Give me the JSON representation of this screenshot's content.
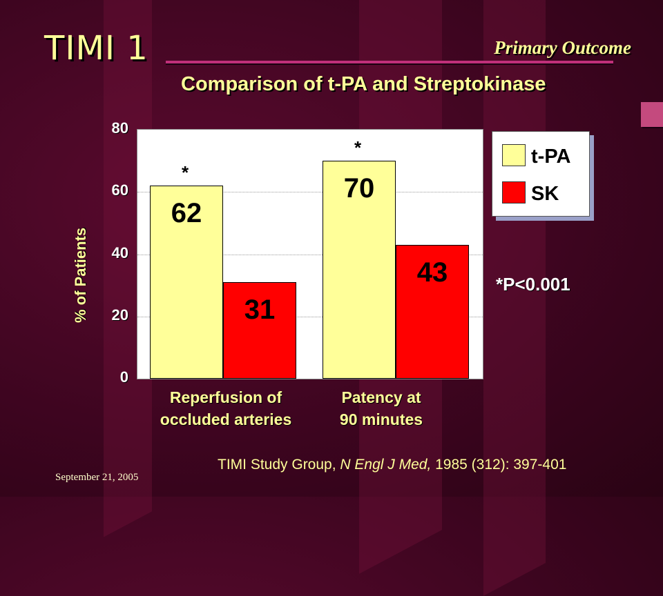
{
  "slide": {
    "title": "TIMI 1",
    "section": "Primary Outcome",
    "subtitle": "Comparison of t-PA and Streptokinase",
    "pvalue_note": "*P<0.001",
    "citation": {
      "prefix": "TIMI Study Group, ",
      "journal": "N Engl J Med,",
      "suffix": " 1985 (312): 397-401"
    },
    "date": "September 21, 2005"
  },
  "colors": {
    "tpa": "#ffff99",
    "sk": "#ff0000"
  },
  "chart_data": {
    "type": "bar",
    "ylabel": "% of Patients",
    "ylim": [
      0,
      80
    ],
    "yticks": [
      "0",
      "20",
      "40",
      "60",
      "80"
    ],
    "categories": [
      "Reperfusion of occluded arteries",
      "Patency at 90 minutes"
    ],
    "category_lines": [
      [
        "Reperfusion of",
        "occluded arteries"
      ],
      [
        "Patency at",
        "90 minutes"
      ]
    ],
    "series": [
      {
        "name": "t-PA",
        "values": [
          62,
          70
        ],
        "labels": [
          "62",
          "70"
        ],
        "significance": [
          "*",
          "*"
        ]
      },
      {
        "name": "SK",
        "values": [
          31,
          43
        ],
        "labels": [
          "31",
          "43"
        ]
      }
    ],
    "grid": true,
    "legend_position": "top-right"
  }
}
